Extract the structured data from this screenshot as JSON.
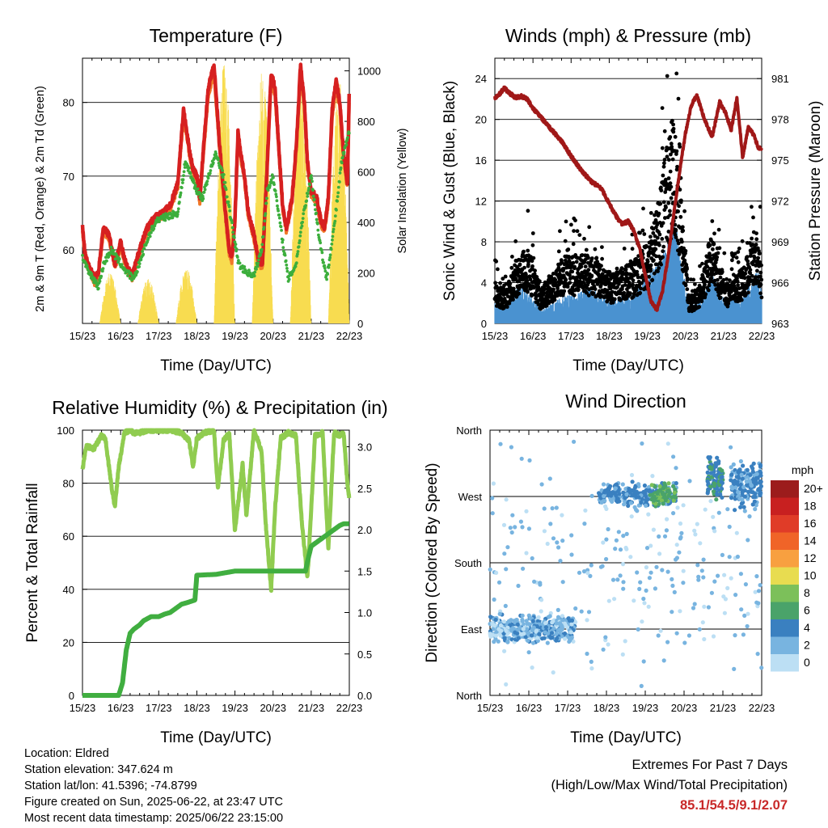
{
  "x_tick_labels": [
    "15/23",
    "16/23",
    "17/23",
    "18/23",
    "19/23",
    "20/23",
    "21/23",
    "22/23"
  ],
  "panels": {
    "temperature": {
      "title": "Temperature (F)",
      "xlabel": "Time (Day/UTC)",
      "ylabel_left": "2m & 9m T (Red, Orange) & 2m Td (Green)",
      "ylabel_right": "Solar Insolation (Yellow)"
    },
    "winds": {
      "title": "Winds (mph) & Pressure (mb)",
      "xlabel": "Time (Day/UTC)",
      "ylabel_left": "Sonic Wind & Gust (Blue, Black)",
      "ylabel_right": "Station Pressure (Maroon)"
    },
    "humidity": {
      "title": "Relative Humidity (%) & Precipitation (in)",
      "xlabel": "Time (Day/UTC)",
      "ylabel_left": "Percent & Total Rainfall"
    },
    "direction": {
      "title": "Wind Direction",
      "xlabel": "Time (Day/UTC)",
      "ylabel_left": "Direction (Colored By Speed)",
      "legend_title": "mph"
    }
  },
  "colors": {
    "temp_2m": "#d62020",
    "temp_9m": "#f07828",
    "dewpoint": "#3cae3c",
    "solar": "#f8dc50",
    "wind": "#4a92d0",
    "gust": "#000000",
    "pressure": "#a01818",
    "rh": "#90cc50",
    "precip": "#40ae40",
    "extremes_text": "#c82828"
  },
  "chart_data": [
    {
      "type": "line",
      "title": "Temperature (F)",
      "xlabel": "Time (Day/UTC)",
      "ylabel": "2m & 9m T (Red, Orange) & 2m Td (Green)",
      "ylabel_right": "Solar Insolation (Yellow)",
      "xlim": [
        0,
        7
      ],
      "ylim": [
        50,
        86
      ],
      "ylim_right": [
        0,
        1050
      ],
      "yticks": [
        60,
        70,
        80
      ],
      "yticks_right": [
        0,
        200,
        400,
        600,
        800,
        1000
      ],
      "series": [
        {
          "name": "2m T",
          "axis": "left",
          "color": "#d62020",
          "x": [
            0,
            0.08,
            0.2,
            0.32,
            0.42,
            0.55,
            0.7,
            0.85,
            1.0,
            1.15,
            1.3,
            1.5,
            1.7,
            1.9,
            2.1,
            2.3,
            2.5,
            2.65,
            2.82,
            2.9,
            3.0,
            3.08,
            3.15,
            3.3,
            3.45,
            3.6,
            3.75,
            3.85,
            3.92,
            4.0,
            4.08,
            4.15,
            4.25,
            4.35,
            4.5,
            4.6,
            4.72,
            4.85,
            4.95,
            5.05,
            5.15,
            5.25,
            5.35,
            5.5,
            5.62,
            5.72,
            5.82,
            5.9,
            6.0,
            6.15,
            6.25,
            6.35,
            6.45,
            6.55,
            6.65,
            6.75,
            6.85,
            6.95,
            7.0
          ],
          "y": [
            63,
            59,
            57.5,
            56,
            57,
            63,
            62,
            58,
            61,
            58,
            56.5,
            60,
            63,
            64.5,
            65,
            66,
            69,
            79,
            73,
            71,
            70,
            67,
            72,
            82,
            85,
            74,
            65,
            60,
            59,
            64,
            76,
            73,
            70,
            65,
            62,
            59,
            58,
            72,
            84,
            82,
            74,
            66,
            63,
            67,
            75,
            85,
            80,
            72,
            68,
            67,
            64,
            63,
            67,
            79,
            83,
            80,
            73,
            69,
            82
          ]
        },
        {
          "name": "9m T",
          "axis": "left",
          "color": "#f07828",
          "x": [
            0,
            0.08,
            0.2,
            0.32,
            0.42,
            0.55,
            0.7,
            0.85,
            1.0,
            1.15,
            1.3,
            1.5,
            1.7,
            1.9,
            2.1,
            2.3,
            2.5,
            2.65,
            2.82,
            2.9,
            3.0,
            3.08,
            3.15,
            3.3,
            3.45,
            3.6,
            3.75,
            3.85,
            3.92,
            4.0,
            4.08,
            4.15,
            4.25,
            4.35,
            4.5,
            4.6,
            4.72,
            4.85,
            4.95,
            5.05,
            5.15,
            5.25,
            5.35,
            5.5,
            5.62,
            5.72,
            5.82,
            5.9,
            6.0,
            6.15,
            6.25,
            6.35,
            6.45,
            6.55,
            6.65,
            6.75,
            6.85,
            6.95,
            7.0
          ],
          "y": [
            62.5,
            58.5,
            57,
            55.5,
            56.5,
            62.5,
            61.5,
            57.5,
            60.5,
            57.5,
            56,
            59.5,
            62.5,
            64,
            64.5,
            65.5,
            68.5,
            78,
            72.5,
            70.5,
            69.5,
            66.5,
            71.5,
            81,
            84,
            73.5,
            64.5,
            59.5,
            58.5,
            63.5,
            75,
            72.5,
            69.5,
            64.5,
            61.5,
            58.5,
            57.5,
            71.5,
            83,
            81,
            73.5,
            65.5,
            62.5,
            66.5,
            74.5,
            84,
            79.5,
            71.5,
            67.5,
            66.5,
            63.5,
            62.5,
            66.5,
            78,
            82,
            79.5,
            72.5,
            68.5,
            81
          ]
        },
        {
          "name": "2m Td",
          "axis": "left",
          "color": "#3cae3c",
          "x": [
            0,
            0.15,
            0.3,
            0.42,
            0.55,
            0.75,
            0.95,
            1.15,
            1.35,
            1.55,
            1.75,
            1.95,
            2.2,
            2.5,
            2.7,
            2.85,
            3.0,
            3.15,
            3.3,
            3.5,
            3.7,
            3.9,
            4.1,
            4.3,
            4.5,
            4.7,
            4.85,
            5.0,
            5.2,
            5.4,
            5.6,
            5.8,
            6.0,
            6.2,
            6.4,
            6.6,
            6.8,
            7.0
          ],
          "y": [
            59,
            57,
            56,
            55,
            58,
            60,
            58.5,
            57,
            56,
            59,
            62,
            64,
            64.5,
            65,
            72,
            70,
            68,
            67,
            70,
            73,
            70,
            64,
            58,
            57,
            56.5,
            60,
            68,
            70,
            63,
            56,
            58,
            65,
            70,
            62,
            56,
            63,
            72,
            76
          ]
        },
        {
          "name": "Solar Insolation",
          "axis": "right",
          "color": "#f8dc50",
          "days": [
            0,
            1,
            2,
            3,
            4,
            5,
            6
          ],
          "daily_peak": [
            200,
            180,
            220,
            1040,
            1020,
            1000,
            980
          ]
        }
      ]
    },
    {
      "type": "scatter",
      "title": "Winds (mph) & Pressure (mb)",
      "xlabel": "Time (Day/UTC)",
      "ylabel": "Sonic Wind & Gust (Blue, Black)",
      "ylabel_right": "Station Pressure (Maroon)",
      "xlim": [
        0,
        7
      ],
      "ylim": [
        0,
        26
      ],
      "ylim_right": [
        963,
        982.5
      ],
      "yticks": [
        0,
        4,
        8,
        12,
        16,
        20,
        24
      ],
      "yticks_right": [
        963,
        966,
        969,
        972,
        975,
        978,
        981
      ],
      "series": [
        {
          "name": "Sonic Wind",
          "color": "#4a92d0",
          "x": [
            0,
            0.3,
            0.6,
            0.9,
            1.2,
            1.5,
            1.8,
            2.1,
            2.4,
            2.7,
            3.0,
            3.3,
            3.6,
            3.9,
            4.1,
            4.3,
            4.5,
            4.7,
            4.9,
            5.1,
            5.3,
            5.5,
            5.7,
            5.9,
            6.1,
            6.3,
            6.5,
            6.7,
            6.9,
            7.0
          ],
          "y": [
            1.5,
            1.2,
            2.5,
            2.0,
            1.0,
            1.3,
            1.8,
            2.0,
            2.5,
            2.2,
            1.5,
            1.8,
            2.0,
            3.0,
            3.5,
            4.0,
            5.0,
            7.5,
            4.0,
            1.0,
            1.5,
            2.0,
            3.5,
            2.0,
            1.5,
            1.8,
            2.0,
            2.8,
            3.5,
            2.5
          ]
        },
        {
          "name": "Gust",
          "color": "#000000",
          "x": [
            0,
            0.3,
            0.6,
            0.9,
            1.2,
            1.5,
            1.8,
            2.1,
            2.4,
            2.7,
            3.0,
            3.3,
            3.6,
            3.9,
            4.1,
            4.3,
            4.5,
            4.7,
            4.9,
            5.1,
            5.3,
            5.5,
            5.7,
            5.9,
            6.1,
            6.3,
            6.5,
            6.7,
            6.9,
            7.0
          ],
          "y": [
            3.0,
            2.5,
            5.0,
            5.5,
            2.5,
            3.5,
            5.0,
            5.0,
            5.0,
            4.5,
            3.5,
            4.0,
            4.5,
            5.5,
            7.0,
            9.0,
            13.0,
            16.0,
            9.0,
            2.0,
            2.5,
            4.0,
            7.5,
            4.5,
            3.0,
            3.5,
            4.0,
            5.5,
            7.0,
            4.5
          ]
        },
        {
          "name": "Station Pressure",
          "color": "#a01818",
          "x": [
            0,
            0.1,
            0.25,
            0.4,
            0.55,
            0.7,
            0.85,
            1.0,
            1.2,
            1.4,
            1.6,
            1.8,
            2.0,
            2.2,
            2.5,
            2.8,
            3.0,
            3.2,
            3.35,
            3.5,
            3.65,
            3.8,
            3.95,
            4.1,
            4.25,
            4.4,
            4.55,
            4.7,
            4.85,
            5.0,
            5.15,
            5.3,
            5.5,
            5.7,
            5.9,
            6.05,
            6.2,
            6.35,
            6.5,
            6.65,
            6.8,
            6.9,
            7.0
          ],
          "y": [
            979.6,
            979.8,
            980.3,
            979.9,
            979.6,
            979.7,
            979.5,
            978.8,
            978.2,
            977.5,
            976.9,
            976.2,
            975.3,
            974.5,
            973.5,
            972.9,
            971.8,
            970.8,
            970.3,
            970.5,
            969.8,
            968.5,
            966.5,
            964.6,
            964.0,
            965.4,
            968.0,
            971.2,
            974.2,
            977.0,
            979.0,
            979.8,
            978.0,
            976.7,
            979.3,
            978.5,
            977.2,
            979.6,
            975.2,
            977.5,
            976.8,
            976.0,
            975.8
          ]
        }
      ]
    },
    {
      "type": "line",
      "title": "Relative Humidity (%) & Precipitation (in)",
      "xlabel": "Time (Day/UTC)",
      "ylabel": "Percent & Total Rainfall",
      "xlim": [
        0,
        7
      ],
      "ylim": [
        0,
        100
      ],
      "ylim_right": [
        0,
        3.2
      ],
      "yticks": [
        0,
        20,
        40,
        60,
        80,
        100
      ],
      "yticks_right": [
        0.0,
        0.5,
        1.0,
        1.5,
        2.0,
        2.5,
        3.0
      ],
      "series": [
        {
          "name": "Relative Humidity",
          "axis": "left",
          "color": "#90cc50",
          "x": [
            0,
            0.1,
            0.3,
            0.5,
            0.6,
            0.75,
            0.85,
            0.95,
            1.1,
            1.25,
            1.35,
            1.5,
            1.7,
            2.0,
            2.3,
            2.6,
            2.8,
            2.9,
            3.0,
            3.2,
            3.45,
            3.55,
            3.7,
            3.85,
            4.0,
            4.2,
            4.3,
            4.5,
            4.7,
            4.8,
            4.95,
            5.05,
            5.2,
            5.4,
            5.6,
            5.75,
            5.9,
            6.0,
            6.1,
            6.3,
            6.45,
            6.6,
            6.75,
            6.85,
            6.95,
            7.0
          ],
          "y": [
            85,
            94,
            93,
            98,
            97,
            80,
            71,
            86,
            99,
            100,
            99,
            99,
            100,
            100,
            100,
            99,
            96,
            86,
            97,
            99,
            100,
            78,
            96,
            99,
            62,
            87,
            68,
            100,
            92,
            66,
            40,
            70,
            97,
            99,
            98,
            66,
            44,
            70,
            98,
            99,
            55,
            99,
            98,
            99,
            80,
            74
          ]
        },
        {
          "name": "Total Rainfall",
          "axis": "right",
          "color": "#40ae40",
          "x": [
            0,
            0.95,
            1.05,
            1.15,
            1.25,
            1.35,
            1.5,
            1.6,
            1.8,
            2.0,
            2.15,
            2.3,
            2.45,
            2.6,
            2.75,
            2.95,
            3.0,
            3.5,
            4.0,
            4.5,
            5.0,
            5.5,
            5.85,
            5.92,
            6.0,
            6.3,
            6.6,
            6.75,
            6.85,
            7.0
          ],
          "y": [
            0,
            0,
            0.15,
            0.55,
            0.75,
            0.8,
            0.85,
            0.9,
            0.95,
            0.95,
            0.98,
            1.0,
            1.05,
            1.1,
            1.12,
            1.15,
            1.45,
            1.46,
            1.5,
            1.5,
            1.5,
            1.5,
            1.5,
            1.65,
            1.8,
            1.9,
            2.0,
            2.05,
            2.07,
            2.07
          ]
        }
      ]
    },
    {
      "type": "scatter",
      "title": "Wind Direction",
      "xlabel": "Time (Day/UTC)",
      "ylabel": "Direction (Colored By Speed)",
      "xlim": [
        0,
        7
      ],
      "ylim": [
        0,
        360
      ],
      "ytick_labels": [
        "North",
        "East",
        "South",
        "West",
        "North"
      ],
      "yticks": [
        0,
        90,
        180,
        270,
        360
      ],
      "legend": {
        "title": "mph",
        "labels": [
          "20+",
          "18",
          "16",
          "14",
          "12",
          "10",
          "8",
          "6",
          "4",
          "2",
          "0"
        ],
        "colors": [
          "#9c1c1c",
          "#c82020",
          "#e03c28",
          "#f06428",
          "#f8a040",
          "#e8dc50",
          "#7cc05a",
          "#4aa36a",
          "#3a80c0",
          "#78b4e0",
          "#bcdff4"
        ]
      },
      "clusters": [
        {
          "x": [
            0,
            2.2
          ],
          "dir": [
            70,
            110
          ],
          "speed": [
            0,
            4
          ]
        },
        {
          "x": [
            0,
            7
          ],
          "dir": [
            0,
            360
          ],
          "speed": [
            0,
            3
          ]
        },
        {
          "x": [
            2.8,
            4.8
          ],
          "dir": [
            255,
            290
          ],
          "speed": [
            2,
            5
          ]
        },
        {
          "x": [
            4.1,
            4.8
          ],
          "dir": [
            255,
            290
          ],
          "speed": [
            5,
            8
          ]
        },
        {
          "x": [
            5.6,
            6.0
          ],
          "dir": [
            260,
            330
          ],
          "speed": [
            3,
            6
          ]
        },
        {
          "x": [
            6.2,
            7.0
          ],
          "dir": [
            250,
            320
          ],
          "speed": [
            2,
            5
          ]
        }
      ]
    }
  ],
  "info": {
    "location": "Location: Eldred",
    "elevation": "Station elevation: 347.624 m",
    "latlon": "Station lat/lon: 41.5396; -74.8799",
    "created": "Figure created on Sun, 2025-06-22, at 23:47 UTC",
    "timestamp": "Most recent data timestamp: 2025/06/22 23:15:00"
  },
  "extremes": {
    "title": "Extremes For Past 7 Days",
    "subtitle": "(High/Low/Max Wind/Total Precipitation)",
    "values": "85.1/54.5/9.1/2.07"
  }
}
